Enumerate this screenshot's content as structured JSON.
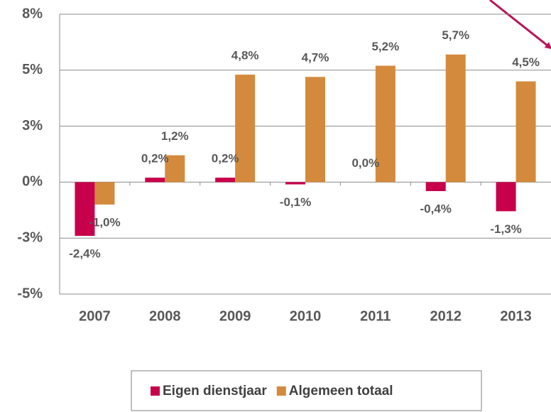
{
  "chart_data": {
    "type": "bar",
    "categories": [
      "2007",
      "2008",
      "2009",
      "2010",
      "2011",
      "2012",
      "2013"
    ],
    "series": [
      {
        "name": "Eigen dienstjaar",
        "color": "#c8004b",
        "values": [
          -2.4,
          0.2,
          0.2,
          -0.1,
          0.0,
          -0.4,
          -1.3
        ],
        "value_labels": [
          "-2,4%",
          "0,2%",
          "0,2%",
          "-0,1%",
          "0,0%",
          "-0,4%",
          "-1,3%"
        ]
      },
      {
        "name": "Algemeen totaal",
        "color": "#d48a3c",
        "values": [
          -1.0,
          1.2,
          4.8,
          4.7,
          5.2,
          5.7,
          4.5
        ],
        "value_labels": [
          "-1,0%",
          "1,2%",
          "4,8%",
          "4,7%",
          "5,2%",
          "5,7%",
          "4,5%"
        ]
      }
    ],
    "ylim": [
      -5,
      7.5
    ],
    "yticks": [
      {
        "value": 7.5,
        "label": "8%"
      },
      {
        "value": 5,
        "label": "5%"
      },
      {
        "value": 2.5,
        "label": "3%"
      },
      {
        "value": 0,
        "label": "0%"
      },
      {
        "value": -2.5,
        "label": "-3%"
      },
      {
        "value": -5,
        "label": "-5%"
      }
    ],
    "grid": true,
    "legend": "bottom"
  }
}
